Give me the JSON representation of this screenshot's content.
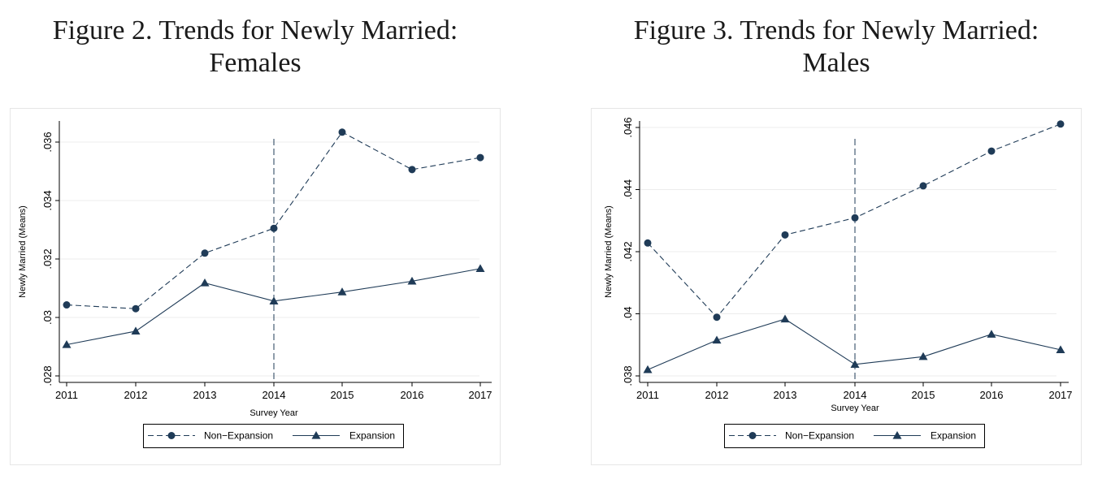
{
  "chart_data": [
    {
      "type": "line",
      "title_line1": "Figure 2. Trends for Newly Married:",
      "title_line2": "Females",
      "xlabel": "Survey Year",
      "ylabel": "Newly Married (Means)",
      "x": [
        2011,
        2012,
        2013,
        2014,
        2015,
        2016,
        2017
      ],
      "ylim": [
        0.028,
        0.0365
      ],
      "yticks": [
        0.028,
        0.03,
        0.032,
        0.034,
        0.036
      ],
      "ytick_labels": [
        ".028",
        ".03",
        ".032",
        ".034",
        ".036"
      ],
      "xtick_labels": [
        "2011",
        "2012",
        "2013",
        "2014",
        "2015",
        "2016",
        "2017"
      ],
      "vline_x": 2014,
      "grid": true,
      "legend_position": "bottom",
      "series": [
        {
          "name": "Non−Expansion",
          "marker": "circle",
          "dash": "dashed",
          "values": [
            0.03043,
            0.0303,
            0.0322,
            0.03305,
            0.03634,
            0.03506,
            0.03547
          ]
        },
        {
          "name": "Expansion",
          "marker": "triangle",
          "dash": "solid",
          "values": [
            0.02907,
            0.02953,
            0.03118,
            0.03056,
            0.03087,
            0.03124,
            0.03167
          ]
        }
      ],
      "color": "#1f3b57"
    },
    {
      "type": "line",
      "title_line1": "Figure 3. Trends for Newly Married:",
      "title_line2": "Males",
      "xlabel": "Survey Year",
      "ylabel": "Newly Married (Means)",
      "x": [
        2011,
        2012,
        2013,
        2014,
        2015,
        2016,
        2017
      ],
      "ylim": [
        0.038,
        0.046
      ],
      "yticks": [
        0.038,
        0.04,
        0.042,
        0.044,
        0.046
      ],
      "ytick_labels": [
        ".038",
        ".04",
        ".042",
        ".044",
        ".046"
      ],
      "xtick_labels": [
        "2011",
        "2012",
        "2013",
        "2014",
        "2015",
        "2016",
        "2017"
      ],
      "vline_x": 2014,
      "grid": true,
      "legend_position": "bottom",
      "series": [
        {
          "name": "Non−Expansion",
          "marker": "circle",
          "dash": "dashed",
          "values": [
            0.04228,
            0.03989,
            0.04254,
            0.04309,
            0.04412,
            0.04524,
            0.04611
          ]
        },
        {
          "name": "Expansion",
          "marker": "triangle",
          "dash": "solid",
          "values": [
            0.0382,
            0.03915,
            0.03983,
            0.03837,
            0.03862,
            0.03934,
            0.03884
          ]
        }
      ],
      "color": "#1f3b57"
    }
  ]
}
